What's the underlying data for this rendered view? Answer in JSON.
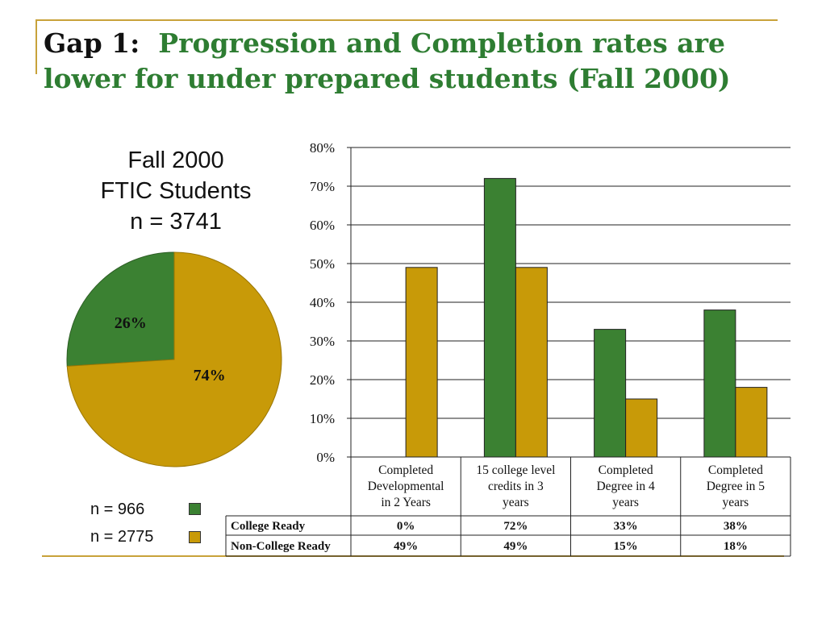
{
  "title": {
    "lead": "Gap 1:",
    "rest": "Progression and Completion rates are lower for under prepared students (Fall 2000)"
  },
  "colors": {
    "college_ready": "#3b8132",
    "non_college_ready": "#c89a08"
  },
  "pie": {
    "caption": [
      "Fall 2000",
      "FTIC Students",
      "n = 3741"
    ]
  },
  "legend": [
    {
      "label": "n = 966",
      "color": "#3b8132"
    },
    {
      "label": "n = 2775",
      "color": "#c89a08"
    }
  ],
  "chart_data": [
    {
      "type": "pie",
      "slices": [
        {
          "label": "26%",
          "value": 26,
          "color": "#3b8132"
        },
        {
          "label": "74%",
          "value": 74,
          "color": "#c89a08"
        }
      ]
    },
    {
      "type": "bar",
      "categories": [
        [
          "Completed",
          "Developmental",
          "in 2 Years"
        ],
        [
          "15 college level",
          "credits in 3",
          "years"
        ],
        [
          "Completed",
          "Degree in 4",
          "years"
        ],
        [
          "Completed",
          "Degree in 5",
          "years"
        ]
      ],
      "series": [
        {
          "name": "College Ready",
          "values": [
            0,
            72,
            33,
            38
          ],
          "labels": [
            "0%",
            "72%",
            "33%",
            "38%"
          ],
          "color": "#3b8132"
        },
        {
          "name": "Non-College Ready",
          "values": [
            49,
            49,
            15,
            18
          ],
          "labels": [
            "49%",
            "49%",
            "15%",
            "18%"
          ],
          "color": "#c89a08"
        }
      ],
      "ylim": [
        0,
        80
      ],
      "yticks": [
        "0%",
        "10%",
        "20%",
        "30%",
        "40%",
        "50%",
        "60%",
        "70%",
        "80%"
      ],
      "grid": true,
      "legend": "data-table"
    }
  ]
}
